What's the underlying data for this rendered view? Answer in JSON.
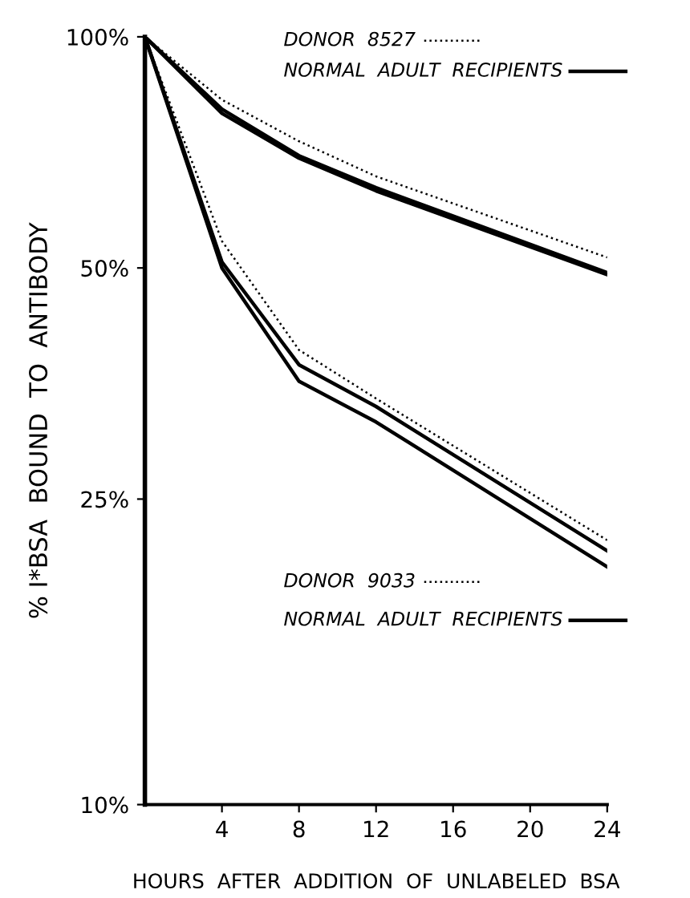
{
  "chart_data": {
    "type": "line",
    "xlabel": "HOURS  AFTER  ADDITION  OF  UNLABELED  BSA",
    "ylabel": "% I*BSA  BOUND  TO  ANTIBODY",
    "x": [
      0,
      4,
      8,
      12,
      24
    ],
    "series": [
      {
        "name": "DONOR  8527",
        "color": "#000000",
        "line_style": "dotted",
        "values": [
          100,
          82.8,
          73.1,
          65.8,
          51.6
        ]
      },
      {
        "name": "NORMAL  ADULT  RECIPIENTS",
        "color": "#000000",
        "line_style": "solid",
        "values": [
          100,
          80.5,
          70.0,
          63.6,
          49.3
        ]
      },
      {
        "color": "#000000",
        "line_style": "solid",
        "values": [
          100,
          79.5,
          69.5,
          63.0,
          49.0
        ]
      },
      {
        "name": "DONOR  9033",
        "color": "#000000",
        "line_style": "dotted",
        "values": [
          100,
          54.2,
          39.1,
          33.8,
          22.1
        ]
      },
      {
        "name": "NORMAL  ADULT  RECIPIENTS",
        "color": "#000000",
        "line_style": "solid",
        "values": [
          100,
          50.9,
          37.4,
          33.0,
          21.4
        ]
      },
      {
        "color": "#000000",
        "line_style": "solid",
        "values": [
          100,
          50.0,
          35.6,
          31.5,
          20.4
        ]
      }
    ],
    "log": "y",
    "xlim": [
      0,
      24
    ],
    "ylim": [
      10,
      100
    ],
    "xticks": [
      4,
      8,
      12,
      16,
      20,
      24
    ],
    "yticks": [
      {
        "value": 10,
        "label": "10%"
      },
      {
        "value": 25,
        "label": "25%"
      },
      {
        "value": 50,
        "label": "50%"
      },
      {
        "value": 100,
        "label": "100%"
      }
    ],
    "grid": false,
    "legend": "top right",
    "marker": "none"
  }
}
